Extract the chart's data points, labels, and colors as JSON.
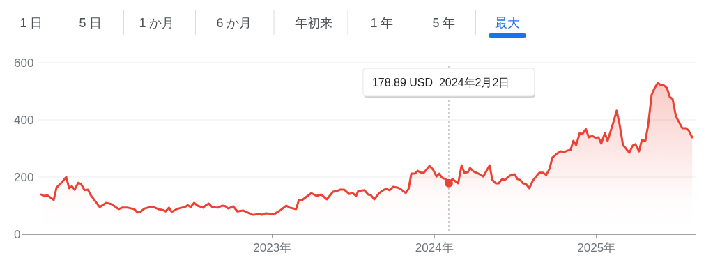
{
  "chart_data": {
    "type": "area",
    "annotations": [
      "1 日",
      "5 日",
      "1 か月",
      "6 か月",
      "年初来",
      "1 年",
      "5 年",
      "最大",
      "178.89 USD  2024年2月2日"
    ],
    "ref_lines": [
      {
        "axis": "x",
        "value": 2024.089,
        "color": "#bdc1c6",
        "line_style": "dotted"
      }
    ],
    "x": [
      2021.573,
      2021.591,
      2021.612,
      2021.651,
      2021.668,
      2021.698,
      2021.728,
      2021.746,
      2021.763,
      2021.78,
      2021.802,
      2021.819,
      2021.841,
      2021.862,
      2021.879,
      2021.935,
      2021.974,
      2022.009,
      2022.052,
      2022.073,
      2022.108,
      2022.147,
      2022.168,
      2022.185,
      2022.211,
      2022.246,
      2022.267,
      2022.297,
      2022.323,
      2022.341,
      2022.362,
      2022.379,
      2022.409,
      2022.44,
      2022.461,
      2022.478,
      2022.496,
      2022.517,
      2022.539,
      2022.573,
      2022.591,
      2022.608,
      2022.629,
      2022.664,
      2022.69,
      2022.711,
      2022.728,
      2022.759,
      2022.784,
      2022.819,
      2022.879,
      2022.922,
      2022.935,
      2022.957,
      2023.013,
      2023.052,
      2023.086,
      2023.108,
      2023.147,
      2023.164,
      2023.185,
      2023.241,
      2023.272,
      2023.302,
      2023.336,
      2023.375,
      2023.397,
      2023.418,
      2023.444,
      2023.474,
      2023.496,
      2023.517,
      2023.53,
      2023.569,
      2023.591,
      2023.608,
      2023.629,
      2023.659,
      2023.69,
      2023.703,
      2023.724,
      2023.746,
      2023.776,
      2023.797,
      2023.823,
      2023.841,
      2023.858,
      2023.879,
      2023.897,
      2023.918,
      2023.935,
      2023.97,
      2023.991,
      2024.013,
      2024.03,
      2024.047,
      2024.069,
      2024.089,
      2024.112,
      2024.147,
      2024.168,
      2024.185,
      2024.207,
      2024.22,
      2024.241,
      2024.272,
      2024.302,
      2024.341,
      2024.358,
      2024.379,
      2024.397,
      2024.418,
      2024.435,
      2024.466,
      2024.496,
      2024.513,
      2024.53,
      2024.547,
      2024.565,
      2024.586,
      2024.608,
      2024.647,
      2024.672,
      2024.69,
      2024.711,
      2024.728,
      2024.759,
      2024.78,
      2024.802,
      2024.823,
      2024.841,
      2024.858,
      2024.875,
      2024.897,
      2024.914,
      2024.935,
      2024.953,
      2024.974,
      2024.996,
      2025.013,
      2025.03,
      2025.052,
      2025.069,
      2025.103,
      2025.125,
      2025.142,
      2025.164,
      2025.185,
      2025.203,
      2025.224,
      2025.241,
      2025.263,
      2025.28,
      2025.302,
      2025.319,
      2025.341,
      2025.358,
      2025.379,
      2025.397,
      2025.418,
      2025.435,
      2025.453,
      2025.47,
      2025.491,
      2025.53,
      2025.552,
      2025.569,
      2025.591
    ],
    "series": [
      {
        "color": "#ea4335",
        "marker": "none",
        "values": [
          139,
          134,
          136,
          120,
          163,
          180,
          200,
          161,
          168,
          156,
          180,
          176,
          154,
          156,
          137,
          95,
          110,
          105,
          88,
          93,
          93,
          88,
          76,
          78,
          90,
          95,
          95,
          88,
          85,
          80,
          93,
          78,
          88,
          93,
          95,
          102,
          95,
          110,
          100,
          93,
          102,
          107,
          95,
          93,
          100,
          98,
          90,
          98,
          80,
          83,
          68,
          71,
          68,
          73,
          71,
          85,
          100,
          93,
          88,
          120,
          120,
          144,
          134,
          139,
          122,
          149,
          151,
          156,
          156,
          141,
          144,
          134,
          151,
          154,
          139,
          137,
          122,
          144,
          156,
          159,
          154,
          166,
          163,
          156,
          144,
          159,
          212,
          212,
          222,
          215,
          215,
          239,
          227,
          202,
          212,
          198,
          193,
          179,
          193,
          178,
          241,
          215,
          217,
          232,
          220,
          212,
          202,
          241,
          190,
          178,
          178,
          193,
          190,
          205,
          210,
          193,
          190,
          178,
          176,
          161,
          188,
          215,
          215,
          207,
          229,
          268,
          283,
          290,
          288,
          293,
          295,
          327,
          312,
          354,
          351,
          368,
          339,
          344,
          337,
          339,
          317,
          354,
          327,
          388,
          432,
          388,
          312,
          298,
          285,
          310,
          315,
          290,
          329,
          327,
          380,
          488,
          510,
          529,
          522,
          520,
          512,
          480,
          473,
          412,
          371,
          371,
          363,
          339
        ]
      },
      {
        "type": "scatter",
        "color": "#ea4335",
        "marker": "circle",
        "x": [
          2024.089
        ],
        "values": [
          178.89
        ]
      }
    ],
    "xlim": [
      2021.457,
      2025.612
    ],
    "xticks": [
      {
        "value": 2023,
        "label": "2023年"
      },
      {
        "value": 2024,
        "label": "2024年"
      },
      {
        "value": 2025,
        "label": "2025年"
      }
    ],
    "ylim": [
      0,
      600
    ],
    "yticks": [
      0,
      200,
      400,
      600
    ],
    "grid": "y",
    "line_style": "solid"
  }
}
